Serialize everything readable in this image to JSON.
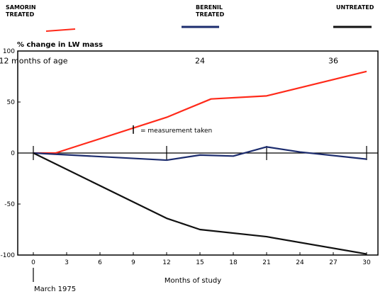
{
  "chart_data": {
    "type": "line",
    "title": "",
    "ylabel": "% change in LW mass",
    "xlabel": "Months of study",
    "xlim": [
      0,
      31
    ],
    "ylim": [
      -100,
      100
    ],
    "x_ticks": [
      0,
      3,
      6,
      9,
      12,
      15,
      18,
      21,
      24,
      27,
      30
    ],
    "y_ticks": [
      -100,
      -50,
      0,
      50,
      100
    ],
    "grid": false,
    "legend_position": "top",
    "legend": [
      {
        "line1": "SAMORIN",
        "line2": "TREATED"
      },
      {
        "line1": "BERENIL",
        "line2": "TREATED"
      },
      {
        "line1": "",
        "line2": "UNTREATED"
      }
    ],
    "series": [
      {
        "name": "SAMORIN TREATED",
        "color": "#ff2a1a",
        "x": [
          0,
          2,
          12,
          16,
          21,
          30
        ],
        "y": [
          0,
          0,
          35,
          53,
          56,
          80
        ]
      },
      {
        "name": "BERENIL TREATED",
        "color": "#1c2c6e",
        "x": [
          0,
          12,
          15,
          18,
          21,
          24,
          30
        ],
        "y": [
          0,
          -7,
          -2,
          -3,
          6,
          1,
          -6
        ]
      },
      {
        "name": "UNTREATED",
        "color": "#111111",
        "x": [
          0,
          12,
          15,
          21,
          30
        ],
        "y": [
          0,
          -64,
          -75,
          -82,
          -99
        ]
      }
    ],
    "age_markers": {
      "x": [
        0,
        12,
        21,
        30
      ],
      "labels": [
        {
          "x": 0,
          "text": "12 months of age"
        },
        {
          "x": 15,
          "text": "24"
        },
        {
          "x": 27,
          "text": "36"
        }
      ]
    },
    "annotation": {
      "text": "= measurement taken",
      "x": 9,
      "y": 23
    },
    "start_label": "March 1975"
  }
}
